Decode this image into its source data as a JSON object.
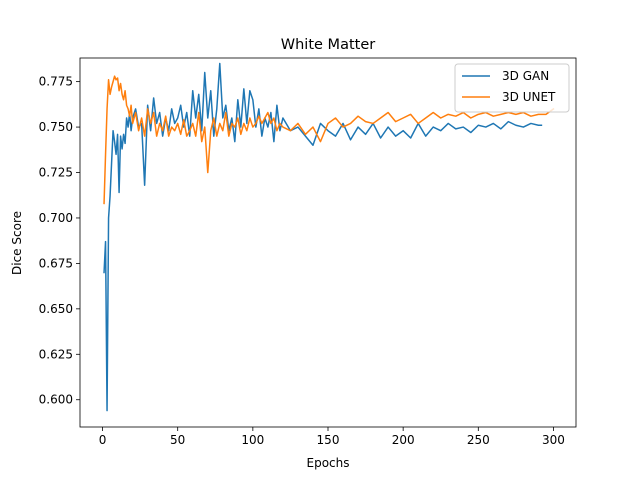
{
  "chart_data": {
    "type": "line",
    "title": "White Matter",
    "xlabel": "Epochs",
    "ylabel": "Dice Score",
    "xlim": [
      -15,
      315
    ],
    "ylim": [
      0.585,
      0.788
    ],
    "xticks": [
      0,
      50,
      100,
      150,
      200,
      250,
      300
    ],
    "yticks": [
      0.6,
      0.625,
      0.65,
      0.675,
      0.7,
      0.725,
      0.75,
      0.775
    ],
    "ytick_labels": [
      "0.600",
      "0.625",
      "0.650",
      "0.675",
      "0.700",
      "0.725",
      "0.750",
      "0.775"
    ],
    "grid": false,
    "legend": "top-right",
    "series": [
      {
        "name": "3D GAN",
        "color": "#1f77b4",
        "x": [
          1,
          2,
          3,
          4,
          5,
          6,
          7,
          8,
          9,
          10,
          11,
          12,
          13,
          14,
          15,
          16,
          17,
          18,
          19,
          20,
          22,
          24,
          26,
          28,
          30,
          32,
          34,
          36,
          38,
          40,
          42,
          44,
          46,
          48,
          50,
          52,
          54,
          56,
          58,
          60,
          62,
          64,
          66,
          68,
          70,
          72,
          74,
          76,
          78,
          80,
          82,
          84,
          86,
          88,
          90,
          92,
          94,
          96,
          98,
          100,
          102,
          104,
          106,
          108,
          110,
          112,
          114,
          116,
          118,
          120,
          125,
          130,
          135,
          140,
          145,
          150,
          155,
          160,
          165,
          170,
          175,
          180,
          185,
          190,
          195,
          200,
          205,
          210,
          215,
          220,
          225,
          230,
          235,
          240,
          245,
          250,
          255,
          260,
          265,
          270,
          275,
          280,
          285,
          290,
          292
        ],
        "y": [
          0.67,
          0.687,
          0.594,
          0.7,
          0.712,
          0.73,
          0.748,
          0.742,
          0.735,
          0.746,
          0.714,
          0.745,
          0.738,
          0.746,
          0.741,
          0.755,
          0.75,
          0.758,
          0.748,
          0.755,
          0.76,
          0.75,
          0.752,
          0.718,
          0.762,
          0.748,
          0.766,
          0.752,
          0.758,
          0.745,
          0.755,
          0.748,
          0.76,
          0.752,
          0.755,
          0.762,
          0.75,
          0.758,
          0.745,
          0.77,
          0.755,
          0.768,
          0.748,
          0.78,
          0.755,
          0.77,
          0.745,
          0.76,
          0.785,
          0.755,
          0.762,
          0.748,
          0.755,
          0.742,
          0.765,
          0.75,
          0.771,
          0.752,
          0.77,
          0.765,
          0.75,
          0.76,
          0.745,
          0.755,
          0.75,
          0.758,
          0.742,
          0.762,
          0.748,
          0.755,
          0.748,
          0.75,
          0.745,
          0.74,
          0.752,
          0.748,
          0.745,
          0.752,
          0.743,
          0.75,
          0.746,
          0.752,
          0.744,
          0.75,
          0.745,
          0.748,
          0.744,
          0.752,
          0.745,
          0.75,
          0.748,
          0.752,
          0.749,
          0.75,
          0.747,
          0.751,
          0.75,
          0.752,
          0.749,
          0.753,
          0.751,
          0.75,
          0.752,
          0.751,
          0.751
        ]
      },
      {
        "name": "3D UNET",
        "color": "#ff7f0e",
        "x": [
          1,
          2,
          3,
          4,
          5,
          6,
          7,
          8,
          9,
          10,
          11,
          12,
          13,
          14,
          15,
          16,
          17,
          18,
          19,
          20,
          22,
          24,
          26,
          28,
          30,
          32,
          34,
          36,
          38,
          40,
          42,
          44,
          46,
          48,
          50,
          52,
          54,
          56,
          58,
          60,
          62,
          64,
          66,
          68,
          70,
          72,
          74,
          76,
          78,
          80,
          82,
          84,
          86,
          88,
          90,
          92,
          94,
          96,
          98,
          100,
          102,
          104,
          106,
          108,
          110,
          112,
          114,
          116,
          118,
          120,
          125,
          130,
          135,
          140,
          145,
          150,
          155,
          160,
          165,
          170,
          175,
          180,
          185,
          190,
          195,
          200,
          205,
          210,
          215,
          220,
          225,
          230,
          235,
          240,
          245,
          250,
          255,
          260,
          265,
          270,
          275,
          280,
          285,
          290,
          295,
          300
        ],
        "y": [
          0.708,
          0.735,
          0.76,
          0.776,
          0.768,
          0.772,
          0.775,
          0.778,
          0.776,
          0.777,
          0.77,
          0.774,
          0.768,
          0.765,
          0.77,
          0.762,
          0.76,
          0.756,
          0.762,
          0.752,
          0.758,
          0.748,
          0.755,
          0.745,
          0.76,
          0.752,
          0.758,
          0.745,
          0.752,
          0.748,
          0.756,
          0.745,
          0.75,
          0.748,
          0.752,
          0.746,
          0.754,
          0.745,
          0.748,
          0.752,
          0.745,
          0.758,
          0.742,
          0.75,
          0.725,
          0.748,
          0.755,
          0.745,
          0.752,
          0.748,
          0.758,
          0.745,
          0.752,
          0.75,
          0.755,
          0.746,
          0.752,
          0.748,
          0.755,
          0.75,
          0.752,
          0.756,
          0.752,
          0.755,
          0.758,
          0.752,
          0.755,
          0.748,
          0.752,
          0.75,
          0.748,
          0.752,
          0.746,
          0.75,
          0.742,
          0.752,
          0.755,
          0.75,
          0.752,
          0.756,
          0.753,
          0.752,
          0.755,
          0.758,
          0.753,
          0.755,
          0.757,
          0.752,
          0.755,
          0.758,
          0.755,
          0.757,
          0.756,
          0.758,
          0.755,
          0.757,
          0.758,
          0.756,
          0.757,
          0.758,
          0.757,
          0.758,
          0.756,
          0.757,
          0.757,
          0.76
        ]
      }
    ]
  }
}
